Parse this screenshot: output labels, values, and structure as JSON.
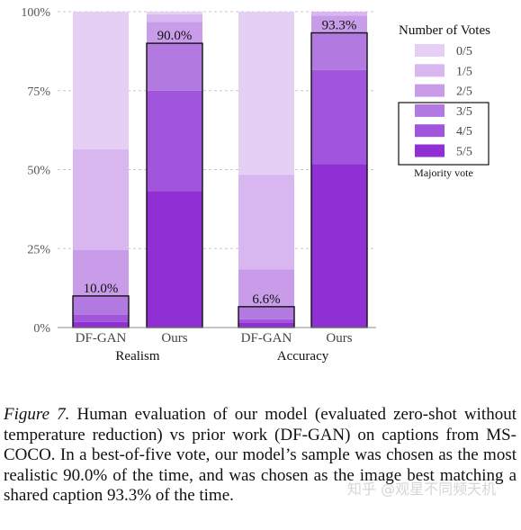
{
  "chart_data": {
    "type": "bar",
    "stacked": true,
    "ylim": [
      0,
      100
    ],
    "ytick_values": [
      0,
      25,
      50,
      75,
      100
    ],
    "ytick_labels": [
      "0%",
      "25%",
      "50%",
      "75%",
      "100%"
    ],
    "grid": "horizontal dashed",
    "legend_title": "Number of Votes",
    "legend_position": "right",
    "legend_entries": [
      "0/5",
      "1/5",
      "2/5",
      "3/5",
      "4/5",
      "5/5"
    ],
    "legend_note": "Majority vote",
    "colors": [
      "#e6cff4",
      "#d8b6ef",
      "#c99ce9",
      "#b27ae0",
      "#a155dc",
      "#8f2fd4"
    ],
    "groups": [
      {
        "name": "Realism",
        "bars": [
          {
            "label": "DF-GAN",
            "segments": [
              43.6,
              31.8,
              14.6,
              6.0,
              2.2,
              1.8
            ],
            "majority": 10.0,
            "majority_label": "10.0%"
          },
          {
            "label": "Ours",
            "segments": [
              0.8,
              2.4,
              6.8,
              15.0,
              31.8,
              43.2
            ],
            "majority": 90.0,
            "majority_label": "90.0%"
          }
        ]
      },
      {
        "name": "Accuracy",
        "bars": [
          {
            "label": "DF-GAN",
            "segments": [
              51.6,
              30.0,
              11.8,
              4.0,
              1.0,
              1.6
            ],
            "majority": 6.6,
            "majority_label": "6.6%"
          },
          {
            "label": "Ours",
            "segments": [
              0.0,
              1.2,
              5.5,
              11.8,
              29.7,
              51.8
            ],
            "majority": 93.3,
            "majority_label": "93.3%"
          }
        ]
      }
    ]
  },
  "caption": {
    "lead": "Figure 7.",
    "text": " Human evaluation of our model (evaluated zero-shot without temperature reduction) vs prior work (DF-GAN) on captions from MS-COCO. In a best-of-five vote, our model’s sample was chosen as the most realistic 90.0% of the time, and was chosen as the image best matching a shared caption 93.3% of the time."
  },
  "watermark": "知乎 @观星不同频天机"
}
